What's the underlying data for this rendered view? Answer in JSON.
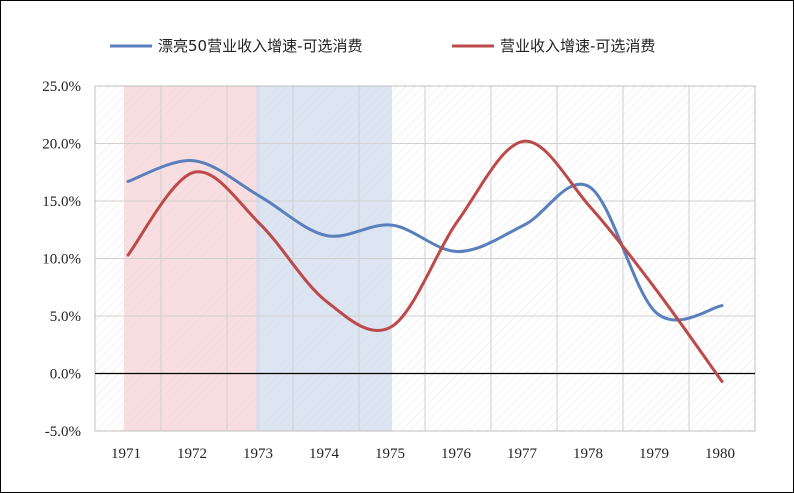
{
  "chart_data": {
    "type": "line",
    "title": "",
    "xlabel": "",
    "ylabel": "",
    "x": [
      "1971",
      "1972",
      "1973",
      "1974",
      "1975",
      "1976",
      "1977",
      "1978",
      "1979",
      "1980"
    ],
    "ylim": [
      -5.0,
      25.0
    ],
    "yticks": [
      "-5.0%",
      "0.0%",
      "5.0%",
      "10.0%",
      "15.0%",
      "20.0%",
      "25.0%"
    ],
    "grid": true,
    "legend_position": "top",
    "shaded_periods": [
      {
        "start": "1971",
        "end": "1973",
        "color": "#f6d3d6"
      },
      {
        "start": "1973",
        "end": "1975",
        "color": "#d2dcee"
      }
    ],
    "series": [
      {
        "name": "漂亮50营业收入增速-可选消费",
        "color": "#5a7fbd",
        "values": [
          16.7,
          18.5,
          15.4,
          12.0,
          12.9,
          10.6,
          12.9,
          16.2,
          5.3,
          5.9
        ]
      },
      {
        "name": "营业收入增速-可选消费",
        "color": "#bd4a4a",
        "values": [
          10.3,
          17.5,
          13.0,
          6.3,
          4.1,
          13.3,
          20.2,
          14.5,
          7.3,
          -0.7
        ]
      }
    ]
  }
}
